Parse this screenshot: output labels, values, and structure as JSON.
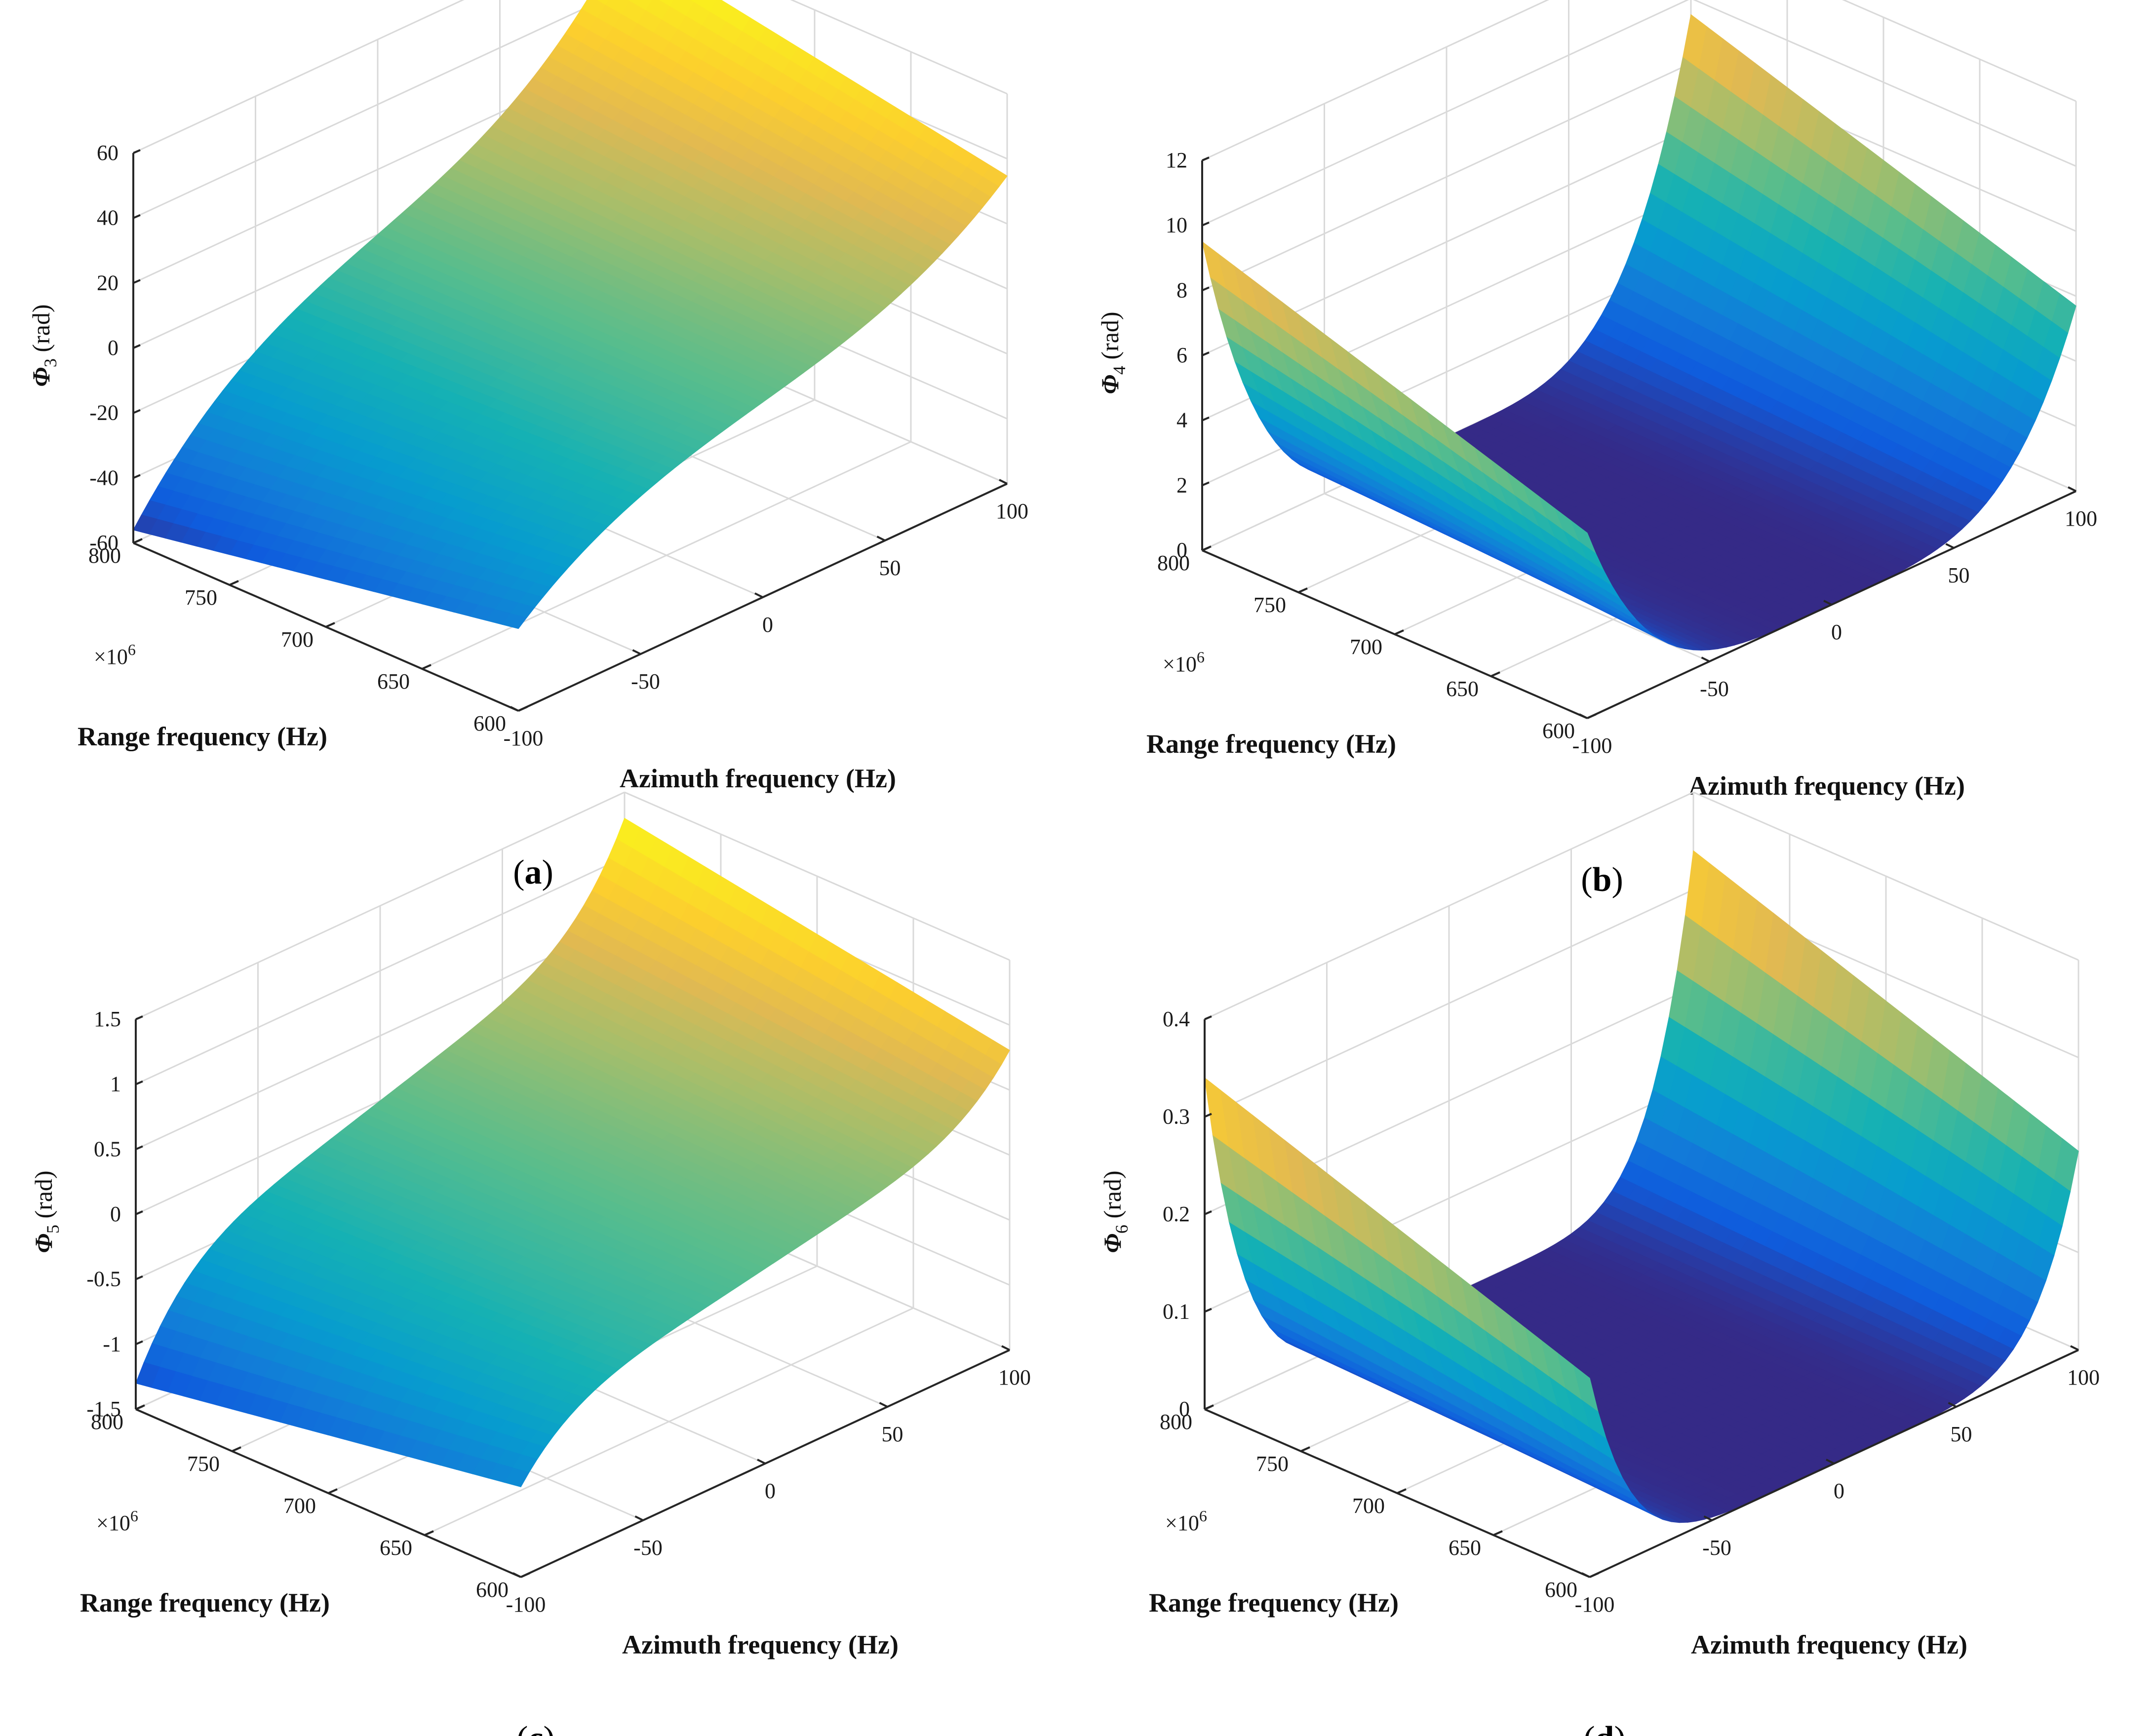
{
  "chart_data": [
    {
      "type": "surface",
      "panel": "a",
      "caption_letter": "a",
      "zlabel_symbol": "Φ",
      "zlabel_sub": "3",
      "zlabel_unit": " (rad)",
      "xlabel": "Range frequency (Hz)",
      "ylabel": "Azimuth frequency (Hz)",
      "x_multiplier": "×10",
      "x_multiplier_exp": "6",
      "x_ticks": [
        "600",
        "650",
        "700",
        "750",
        "800"
      ],
      "y_ticks": [
        "-100",
        "-50",
        "0",
        "50",
        "100"
      ],
      "z_ticks": [
        "-60",
        "-40",
        "-20",
        "0",
        "20",
        "40",
        "60"
      ],
      "xlim": [
        600,
        800
      ],
      "ylim": [
        -100,
        100
      ],
      "zlim": [
        -60,
        60
      ],
      "surface": {
        "shape": "odd-cubic",
        "z_at_azimuth_min": -56,
        "z_at_azimuth_max": 56,
        "range_scale": [
          0.62,
          1.0
        ]
      },
      "colormap": "parula"
    },
    {
      "type": "surface",
      "panel": "b",
      "caption_letter": "b",
      "zlabel_symbol": "Φ",
      "zlabel_sub": "4",
      "zlabel_unit": " (rad)",
      "xlabel": "Range frequency (Hz)",
      "ylabel": "Azimuth frequency (Hz)",
      "x_multiplier": "×10",
      "x_multiplier_exp": "6",
      "x_ticks": [
        "600",
        "650",
        "700",
        "750",
        "800"
      ],
      "y_ticks": [
        "-100",
        "-50",
        "0",
        "50",
        "100"
      ],
      "z_ticks": [
        "0",
        "2",
        "4",
        "6",
        "8",
        "10",
        "12"
      ],
      "xlim": [
        600,
        800
      ],
      "ylim": [
        -100,
        100
      ],
      "zlim": [
        0,
        12
      ],
      "surface": {
        "shape": "even-quartic",
        "z_at_azimuth_min": 9.5,
        "z_at_azimuth_max": 9.5,
        "range_scale": [
          0.6,
          1.0
        ]
      },
      "colormap": "parula"
    },
    {
      "type": "surface",
      "panel": "c",
      "caption_letter": "c",
      "zlabel_symbol": "Φ",
      "zlabel_sub": "5",
      "zlabel_unit": " (rad)",
      "xlabel": "Range frequency (Hz)",
      "ylabel": "Azimuth frequency (Hz)",
      "x_multiplier": "×10",
      "x_multiplier_exp": "6",
      "x_ticks": [
        "600",
        "650",
        "700",
        "750",
        "800"
      ],
      "y_ticks": [
        "-100",
        "-50",
        "0",
        "50",
        "100"
      ],
      "z_ticks": [
        "-1.5",
        "-1",
        "-0.5",
        "0",
        "0.5",
        "1",
        "1.5"
      ],
      "xlim": [
        600,
        800
      ],
      "ylim": [
        -100,
        100
      ],
      "zlim": [
        -1.5,
        1.5
      ],
      "surface": {
        "shape": "odd-quintic",
        "z_at_azimuth_min": -1.3,
        "z_at_azimuth_max": 1.3,
        "range_scale": [
          0.62,
          1.0
        ]
      },
      "colormap": "parula"
    },
    {
      "type": "surface",
      "panel": "d",
      "caption_letter": "d",
      "zlabel_symbol": "Φ",
      "zlabel_sub": "6",
      "zlabel_unit": " (rad)",
      "xlabel": "Range frequency (Hz)",
      "ylabel": "Azimuth frequency (Hz)",
      "x_multiplier": "×10",
      "x_multiplier_exp": "6",
      "x_ticks": [
        "600",
        "650",
        "700",
        "750",
        "800"
      ],
      "y_ticks": [
        "-100",
        "-50",
        "0",
        "50",
        "100"
      ],
      "z_ticks": [
        "0",
        "0.1",
        "0.2",
        "0.3",
        "0.4"
      ],
      "xlim": [
        600,
        800
      ],
      "ylim": [
        -100,
        100
      ],
      "zlim": [
        0,
        0.4
      ],
      "surface": {
        "shape": "even-sextic",
        "z_at_azimuth_min": 0.34,
        "z_at_azimuth_max": 0.34,
        "range_scale": [
          0.6,
          1.0
        ]
      },
      "colormap": "parula"
    }
  ]
}
